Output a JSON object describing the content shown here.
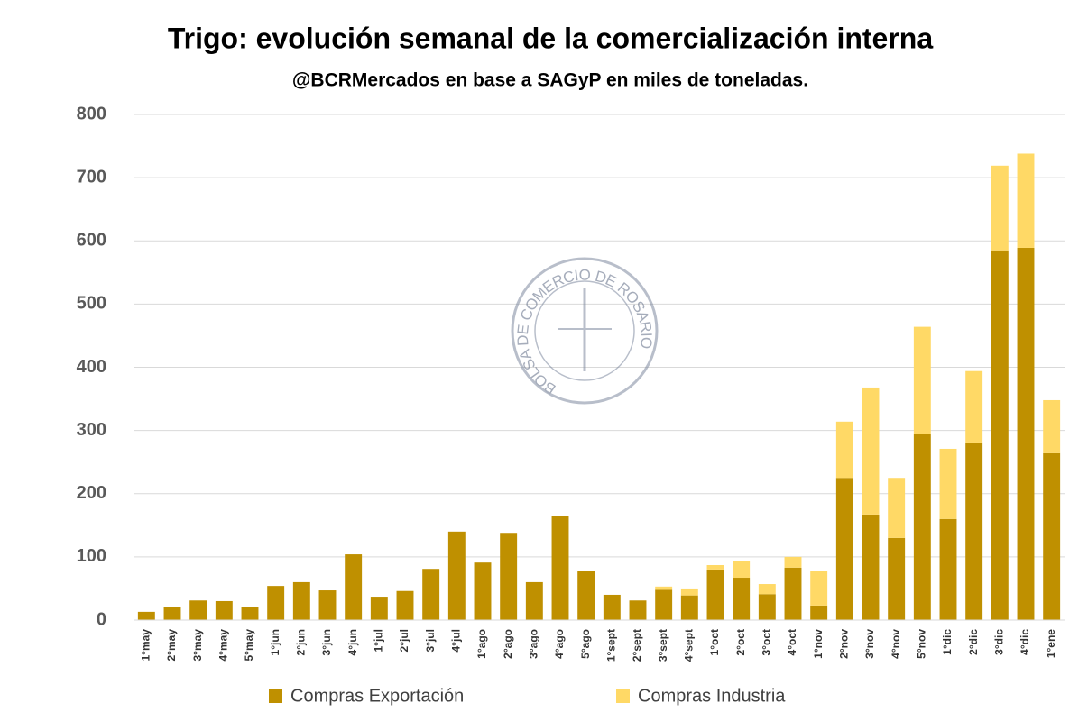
{
  "chart_data": {
    "type": "stacked_bar",
    "title": "Trigo: evolución semanal de la comercialización interna",
    "subtitle": "@BCRMercados en base a SAGyP en miles de toneladas.",
    "watermark": "BOLSA DE COMERCIO DE ROSARIO",
    "categories": [
      "1°may",
      "2°may",
      "3°may",
      "4°may",
      "5°may",
      "1°jun",
      "2°jun",
      "3°jun",
      "4°jun",
      "1°jul",
      "2°jul",
      "3°jul",
      "4°jul",
      "1°ago",
      "2°ago",
      "3°ago",
      "4°ago",
      "5°ago",
      "1°sept",
      "2°sept",
      "3°sept",
      "4°sept",
      "1°oct",
      "2°oct",
      "3°oct",
      "4°oct",
      "1°nov",
      "2°nov",
      "3°nov",
      "4°nov",
      "5°nov",
      "1°dic",
      "2°dic",
      "3°dic",
      "4°dic",
      "1°ene"
    ],
    "series": [
      {
        "name": "Compras Exportación",
        "color": "#bf9000",
        "values": [
          13,
          21,
          31,
          30,
          21,
          54,
          60,
          47,
          104,
          37,
          46,
          81,
          140,
          91,
          138,
          60,
          165,
          77,
          40,
          31,
          48,
          39,
          80,
          67,
          41,
          83,
          23,
          225,
          167,
          130,
          294,
          160,
          281,
          585,
          589,
          264
        ]
      },
      {
        "name": "Compras Industria",
        "color": "#ffd966",
        "values": [
          0,
          0,
          0,
          0,
          0,
          0,
          0,
          0,
          0,
          0,
          0,
          0,
          0,
          0,
          0,
          0,
          0,
          0,
          0,
          0,
          5,
          11,
          7,
          26,
          16,
          17,
          54,
          89,
          201,
          95,
          170,
          111,
          113,
          134,
          149,
          84
        ]
      }
    ],
    "ylim": [
      0,
      800
    ],
    "yticks": [
      0,
      100,
      200,
      300,
      400,
      500,
      600,
      700,
      800
    ],
    "grid": true
  }
}
